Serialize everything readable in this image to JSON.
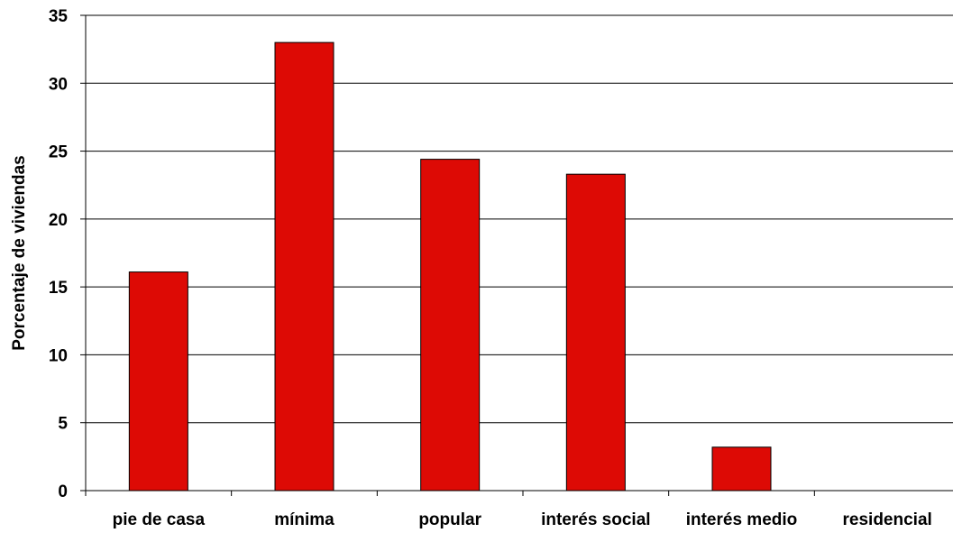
{
  "chart_data": {
    "type": "bar",
    "title": "",
    "xlabel": "",
    "ylabel": "Porcentaje de viviendas",
    "categories": [
      "pie de casa",
      "mínima",
      "popular",
      "interés social",
      "interés medio",
      "residencial"
    ],
    "values": [
      16.1,
      33.0,
      24.4,
      23.3,
      3.2,
      0
    ],
    "ylim": [
      0,
      35
    ],
    "yticks": [
      0,
      5,
      10,
      15,
      20,
      25,
      30,
      35
    ],
    "grid": true,
    "legend": "none",
    "bar_color": "#dd0a05",
    "bar_edge_color": "#000000"
  }
}
